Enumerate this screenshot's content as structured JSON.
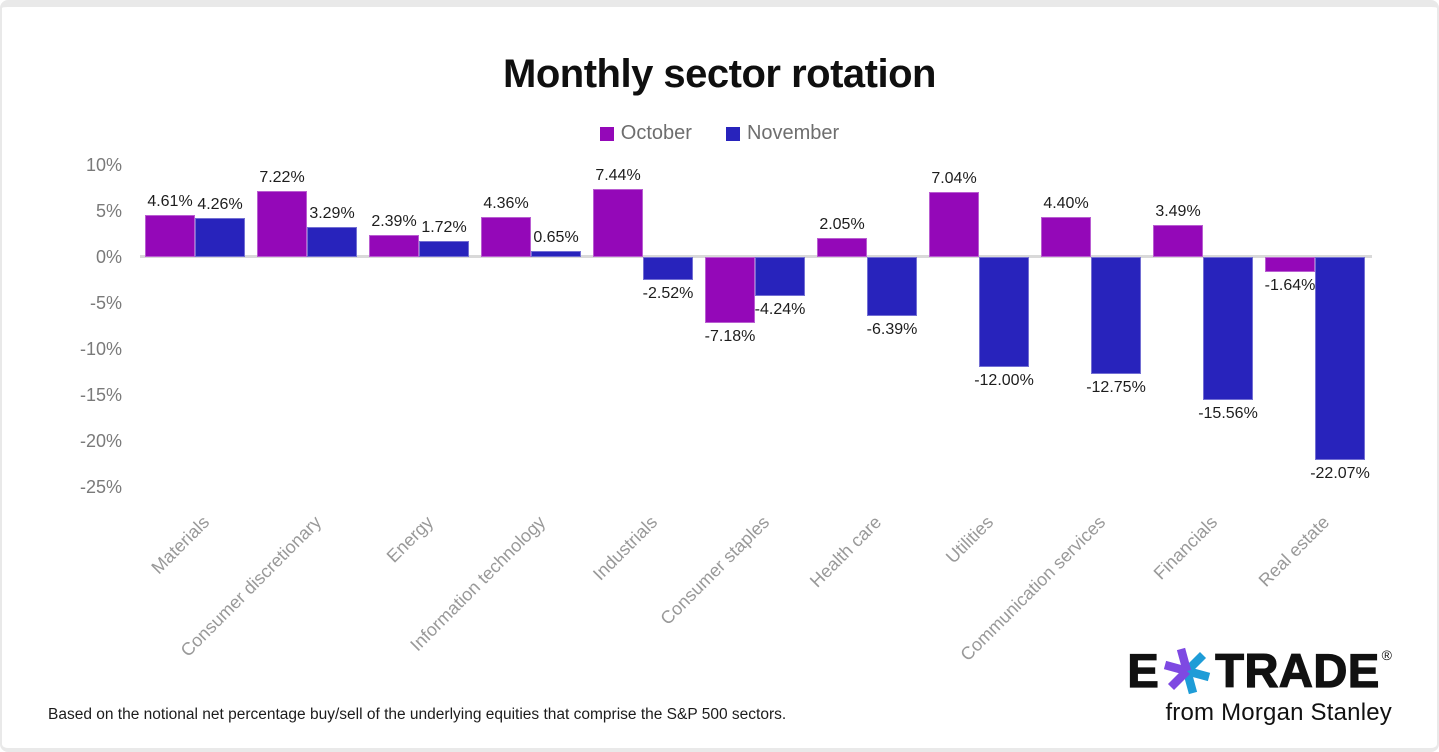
{
  "footnote": "Based on the notional net percentage buy/sell of the underlying equities that comprise the S&P 500 sectors.",
  "logo": {
    "brand_e": "E",
    "brand_trade": "TRADE",
    "registered_mark": "®",
    "tagline": "from Morgan Stanley",
    "asterisk_left_color": "#7e49e2",
    "asterisk_right_color": "#1e9cd7"
  },
  "colors": {
    "october": "#9408b8",
    "november": "#2823bc",
    "axis_line": "#d9d9d9",
    "tick_text": "#7a7a7a",
    "category_text": "#999999",
    "legend_text": "#6e6e6e",
    "value_label_text": "#1d1d1d"
  },
  "chart_data": {
    "type": "bar",
    "title": "Monthly sector rotation",
    "categories": [
      "Materials",
      "Consumer discretionary",
      "Energy",
      "Information technology",
      "Industrials",
      "Consumer staples",
      "Health care",
      "Utilities",
      "Communication services",
      "Financials",
      "Real estate"
    ],
    "series": [
      {
        "name": "October",
        "color": "#9408b8",
        "values": [
          4.61,
          7.22,
          2.39,
          4.36,
          7.44,
          -7.18,
          2.05,
          7.04,
          4.4,
          3.49,
          -1.64
        ]
      },
      {
        "name": "November",
        "color": "#2823bc",
        "values": [
          4.26,
          3.29,
          1.72,
          0.65,
          -2.52,
          -4.24,
          -6.39,
          -12.0,
          -12.75,
          -15.56,
          -22.07
        ]
      }
    ],
    "value_label_format": "two-decimals-percent",
    "y_ticks": [
      10,
      5,
      0,
      -5,
      -10,
      -15,
      -20,
      -25
    ],
    "y_tick_suffix": "%",
    "ylim": [
      -25,
      11
    ],
    "grid": "zero-baseline-only",
    "legend_position": "top-center",
    "xlabel": "",
    "ylabel": ""
  }
}
